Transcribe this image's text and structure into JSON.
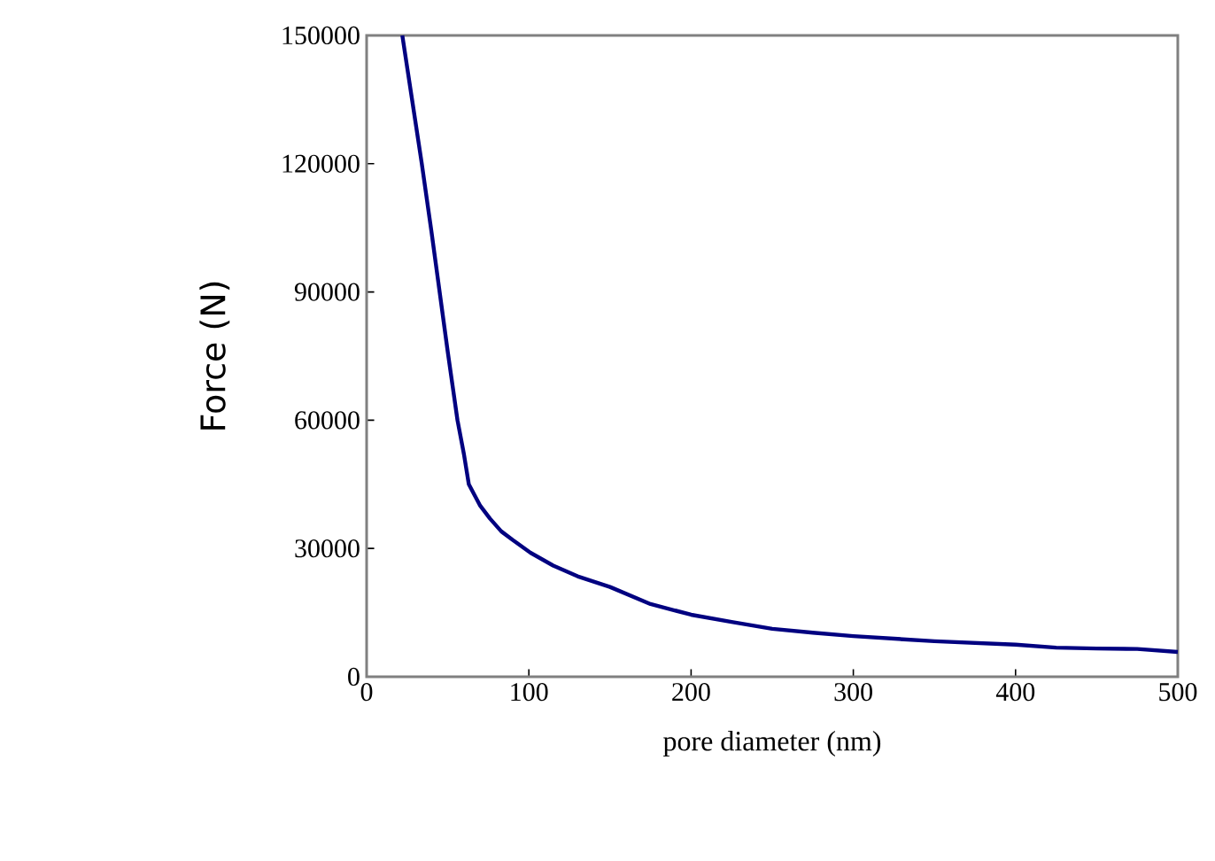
{
  "chart_data": {
    "type": "line",
    "xlabel": "pore diameter (nm)",
    "ylabel": "Force (N)",
    "xlim": [
      0,
      500
    ],
    "ylim": [
      0,
      150000
    ],
    "xticks": [
      0,
      100,
      200,
      300,
      400,
      500
    ],
    "yticks": [
      0,
      30000,
      60000,
      90000,
      120000,
      150000
    ],
    "grid": false,
    "marker": "none",
    "line_style": "solid",
    "series": [
      {
        "color": "#000080",
        "x": [
          22,
          28,
          34,
          40,
          45,
          50,
          56,
          60,
          63,
          70,
          76,
          83,
          90,
          101,
          115,
          130,
          150,
          175,
          200,
          225,
          250,
          275,
          300,
          350,
          400,
          425,
          450,
          475,
          500
        ],
        "values": [
          150000,
          135000,
          120000,
          104000,
          90000,
          76000,
          60000,
          52000,
          45000,
          40000,
          37000,
          34000,
          32000,
          29000,
          26000,
          23500,
          21000,
          17000,
          14500,
          12800,
          11200,
          10300,
          9500,
          8300,
          7500,
          6800,
          6600,
          6500,
          5800
        ]
      }
    ]
  }
}
